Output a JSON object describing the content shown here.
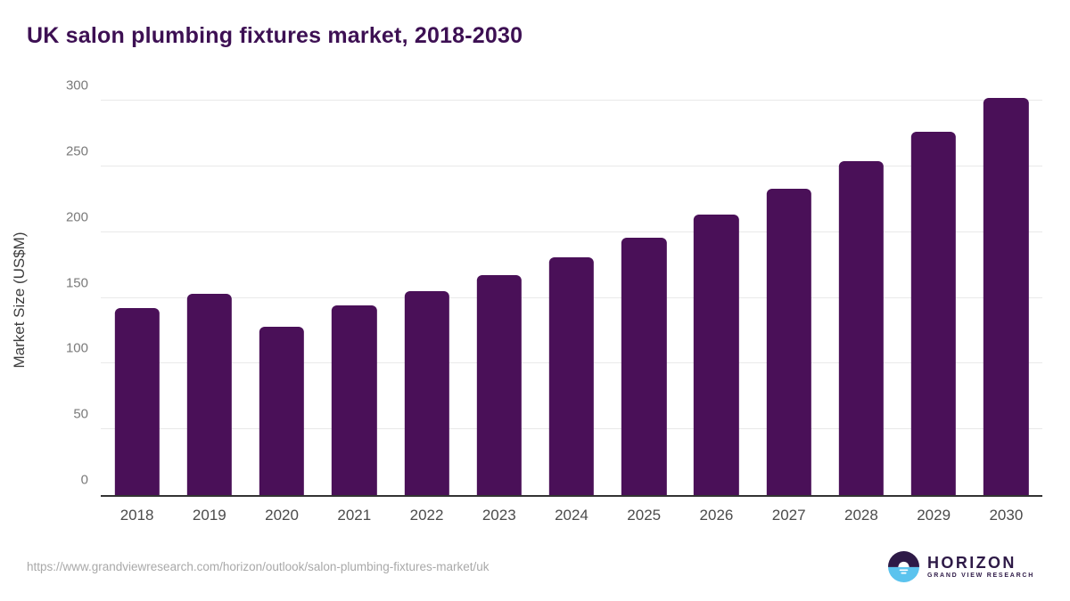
{
  "title": "UK salon plumbing fixtures market, 2018-2030",
  "chart_data": {
    "type": "bar",
    "title": "UK salon plumbing fixtures market, 2018-2030",
    "categories": [
      "2018",
      "2019",
      "2020",
      "2021",
      "2022",
      "2023",
      "2024",
      "2025",
      "2026",
      "2027",
      "2028",
      "2029",
      "2030"
    ],
    "values": [
      142,
      153,
      128,
      144,
      155,
      167,
      181,
      196,
      213,
      233,
      254,
      276,
      302
    ],
    "xlabel": "",
    "ylabel": "Market Size (US$M)",
    "ylim": [
      0,
      300
    ],
    "yticks": [
      0,
      50,
      100,
      150,
      200,
      250,
      300
    ],
    "grid": true,
    "legend": "none",
    "bar_color": "#4a1058"
  },
  "colors": {
    "title": "#3d1053",
    "bar": "#4a1058",
    "gridline": "#e9e9e9",
    "axis_line": "#333333",
    "tick_label": "#7a7a7a",
    "x_label": "#4b4b4b",
    "footer_url": "#a9a9a9",
    "logo_purple": "#2e1a47",
    "logo_blue": "#5bc3ee"
  },
  "footer": {
    "source_url": "https://www.grandviewresearch.com/horizon/outlook/salon-plumbing-fixtures-market/uk",
    "logo": {
      "name": "HORIZON",
      "subtitle": "GRAND VIEW RESEARCH"
    }
  }
}
